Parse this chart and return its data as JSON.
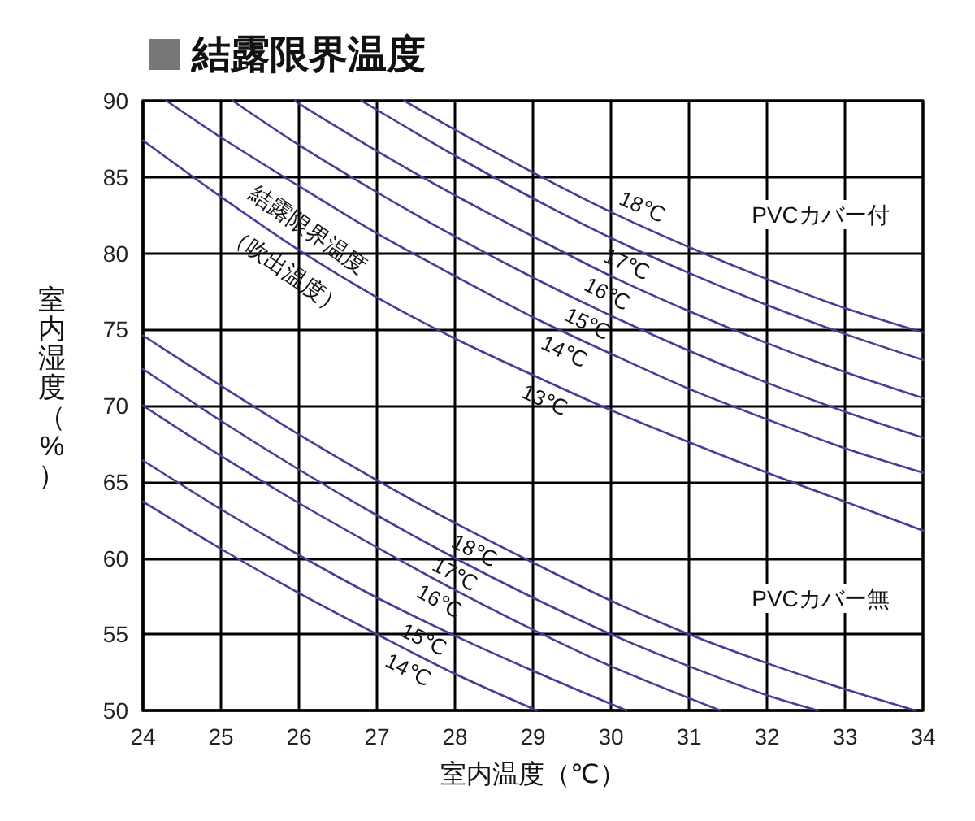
{
  "chart_data": {
    "type": "line",
    "title": "結露限界温度",
    "xlabel": "室内温度（℃）",
    "ylabel": "室内湿度（%）",
    "xlim": [
      24,
      34
    ],
    "ylim": [
      50,
      90
    ],
    "xticks": [
      24,
      25,
      26,
      27,
      28,
      29,
      30,
      31,
      32,
      33,
      34
    ],
    "yticks": [
      50,
      55,
      60,
      65,
      70,
      75,
      80,
      85,
      90
    ],
    "grid": true,
    "line_style": "solid",
    "annotations": [
      "結露限界温度",
      "（吹出温度）",
      "PVCカバー付",
      "PVCカバー無"
    ],
    "series": [
      {
        "name": "18℃",
        "color": "#40409a",
        "x": [
          27.35,
          28,
          29,
          30,
          31,
          32,
          33,
          34
        ],
        "values": [
          90,
          88.1,
          85.3,
          82.7,
          80.4,
          78.3,
          76.4,
          74.8
        ]
      },
      {
        "name": "17℃",
        "color": "#40409a",
        "x": [
          26.8,
          27,
          28,
          29,
          30,
          31,
          32,
          33,
          34
        ],
        "values": [
          90,
          89.4,
          86.4,
          83.6,
          81.0,
          78.7,
          76.6,
          74.7,
          73.0
        ]
      },
      {
        "name": "16℃",
        "color": "#40409a",
        "x": [
          25.95,
          26,
          27,
          28,
          29,
          30,
          31,
          32,
          33,
          34
        ],
        "values": [
          90,
          89.8,
          86.7,
          83.8,
          81.1,
          78.5,
          76.2,
          74.1,
          72.2,
          70.5
        ]
      },
      {
        "name": "15℃",
        "color": "#40409a",
        "x": [
          25.15,
          26,
          27,
          28,
          29,
          30,
          31,
          32,
          33,
          34
        ],
        "values": [
          90,
          87.1,
          84.0,
          81.1,
          78.4,
          75.9,
          73.6,
          71.5,
          69.6,
          67.9
        ]
      },
      {
        "name": "14℃",
        "color": "#40409a",
        "x": [
          24.3,
          25,
          26,
          27,
          28,
          29,
          30,
          31,
          32,
          33,
          34
        ],
        "values": [
          90,
          87.6,
          84.4,
          81.3,
          78.5,
          75.8,
          73.4,
          71.1,
          69.1,
          67.2,
          65.6
        ]
      },
      {
        "name": "13℃",
        "color": "#40409a",
        "x": [
          24,
          25,
          26,
          27,
          28,
          29,
          30,
          31,
          32,
          33,
          34
        ],
        "values": [
          87.4,
          83.7,
          80.2,
          77.1,
          74.4,
          72.0,
          69.7,
          67.6,
          65.6,
          63.7,
          61.8
        ]
      },
      {
        "name": "18℃",
        "color": "#40409a",
        "x": [
          24,
          25,
          26,
          27,
          28,
          29,
          30,
          31,
          32,
          33,
          33.9
        ],
        "values": [
          74.6,
          71.3,
          68.1,
          65.1,
          62.3,
          59.7,
          57.2,
          55.0,
          53.1,
          51.4,
          50
        ]
      },
      {
        "name": "17℃",
        "color": "#40409a",
        "x": [
          24,
          25,
          26,
          27,
          28,
          29,
          30,
          31,
          32,
          32.65
        ],
        "values": [
          72.4,
          69.0,
          65.8,
          62.8,
          60.0,
          57.4,
          55.0,
          52.9,
          51.0,
          50
        ]
      },
      {
        "name": "16℃",
        "color": "#40409a",
        "x": [
          24,
          25,
          26,
          27,
          28,
          29,
          30,
          31.4
        ],
        "values": [
          70.0,
          66.7,
          63.6,
          60.7,
          57.9,
          55.3,
          52.9,
          50
        ]
      },
      {
        "name": "15℃",
        "color": "#40409a",
        "x": [
          24,
          25,
          26,
          27,
          28,
          29,
          30.2
        ],
        "values": [
          66.4,
          63.2,
          60.2,
          57.4,
          54.9,
          52.6,
          50
        ]
      },
      {
        "name": "14℃",
        "color": "#40409a",
        "x": [
          24,
          25,
          26,
          27,
          28,
          29.05
        ],
        "values": [
          63.7,
          60.6,
          57.7,
          55.0,
          52.4,
          50
        ]
      }
    ]
  }
}
